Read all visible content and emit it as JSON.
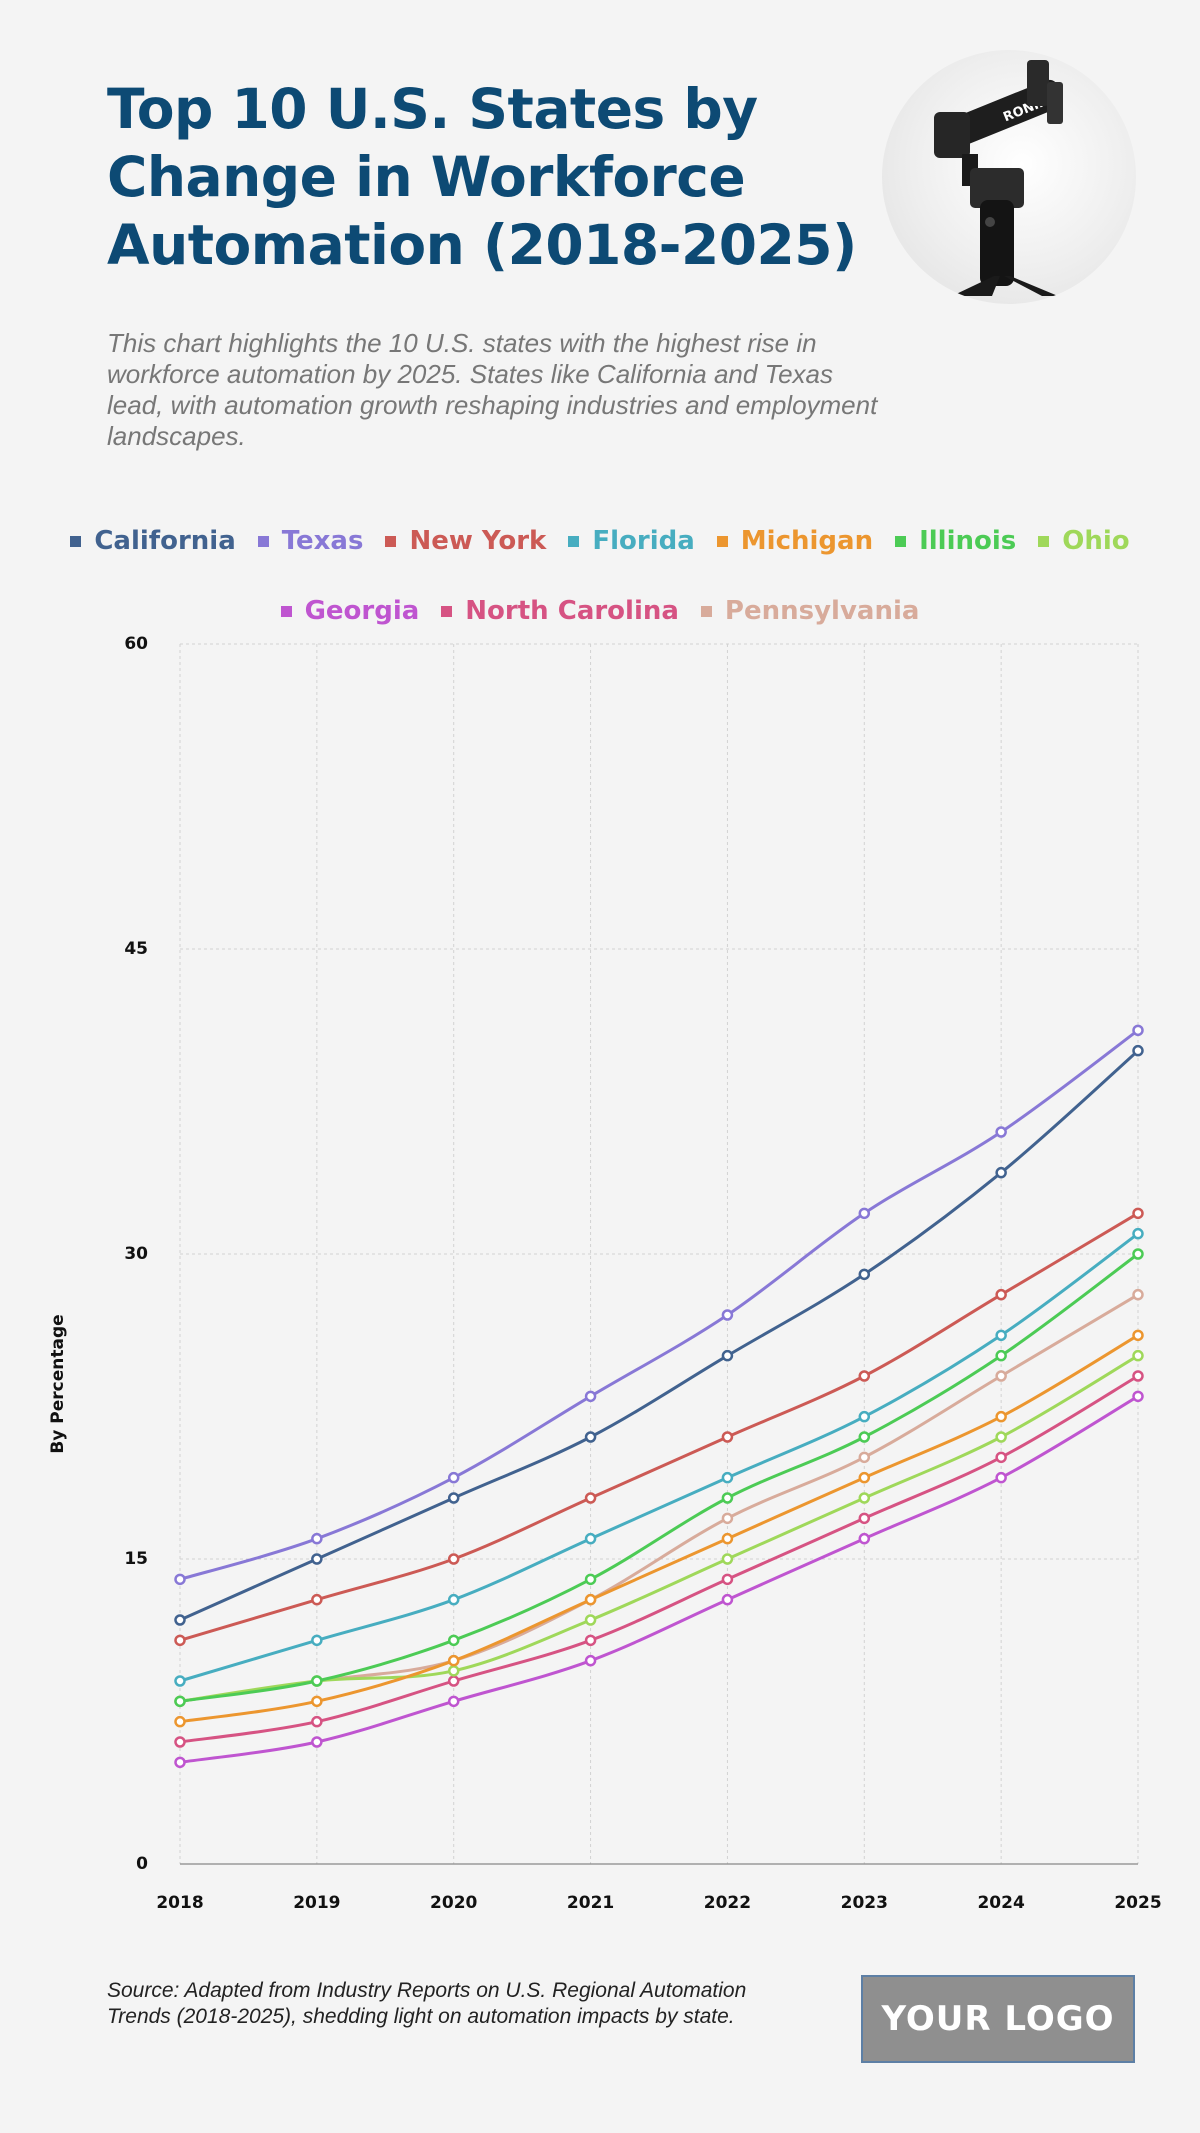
{
  "header": {
    "title": "Top 10 U.S. States by Change in Workforce Automation (2018-2025)",
    "subtitle": "This chart highlights the 10 U.S. states with the highest rise in workforce automation by 2025. States like California and Texas lead, with automation growth reshaping industries and employment landscapes."
  },
  "photo": {
    "label": "RONIN"
  },
  "footer": {
    "source": "Source: Adapted from Industry Reports on U.S. Regional Automation Trends (2018-2025), shedding light on automation impacts by state.",
    "logo_text": "YOUR LOGO"
  },
  "chart_data": {
    "type": "line",
    "title": "Top 10 U.S. States by Change in Workforce Automation (2018-2025)",
    "xlabel": "",
    "ylabel": "By Percentage",
    "ylim": [
      0,
      60
    ],
    "yticks": [
      0,
      15,
      30,
      45,
      60
    ],
    "grid": true,
    "legend_placement": "top",
    "x": [
      "2018",
      "2019",
      "2020",
      "2021",
      "2022",
      "2023",
      "2024",
      "2025"
    ],
    "series": [
      {
        "name": "California",
        "color": "#41628f",
        "values": [
          12,
          15,
          18,
          21,
          25,
          29,
          34,
          40
        ]
      },
      {
        "name": "Texas",
        "color": "#8878d6",
        "values": [
          14,
          16,
          19,
          23,
          27,
          32,
          36,
          41
        ]
      },
      {
        "name": "New York",
        "color": "#cc5a55",
        "values": [
          11,
          13,
          15,
          18,
          21,
          24,
          28,
          32
        ]
      },
      {
        "name": "Florida",
        "color": "#47adc0",
        "values": [
          9,
          11,
          13,
          16,
          19,
          22,
          26,
          31
        ]
      },
      {
        "name": "Michigan",
        "color": "#ec962f",
        "values": [
          7,
          8,
          10,
          13,
          16,
          19,
          22,
          26
        ]
      },
      {
        "name": "Illinois",
        "color": "#4ccb55",
        "values": [
          8,
          9,
          11,
          14,
          18,
          21,
          25,
          30
        ]
      },
      {
        "name": "Ohio",
        "color": "#9fd85a",
        "values": [
          8,
          9,
          9.5,
          12,
          15,
          18,
          21,
          25
        ]
      },
      {
        "name": "Georgia",
        "color": "#bf55d0",
        "values": [
          5,
          6,
          8,
          10,
          13,
          16,
          19,
          23
        ]
      },
      {
        "name": "North Carolina",
        "color": "#d65383",
        "values": [
          6,
          7,
          9,
          11,
          14,
          17,
          20,
          24
        ]
      },
      {
        "name": "Pennsylvania",
        "color": "#d8ab9b",
        "values": [
          8,
          9,
          10,
          13,
          17,
          20,
          24,
          28
        ]
      }
    ]
  }
}
